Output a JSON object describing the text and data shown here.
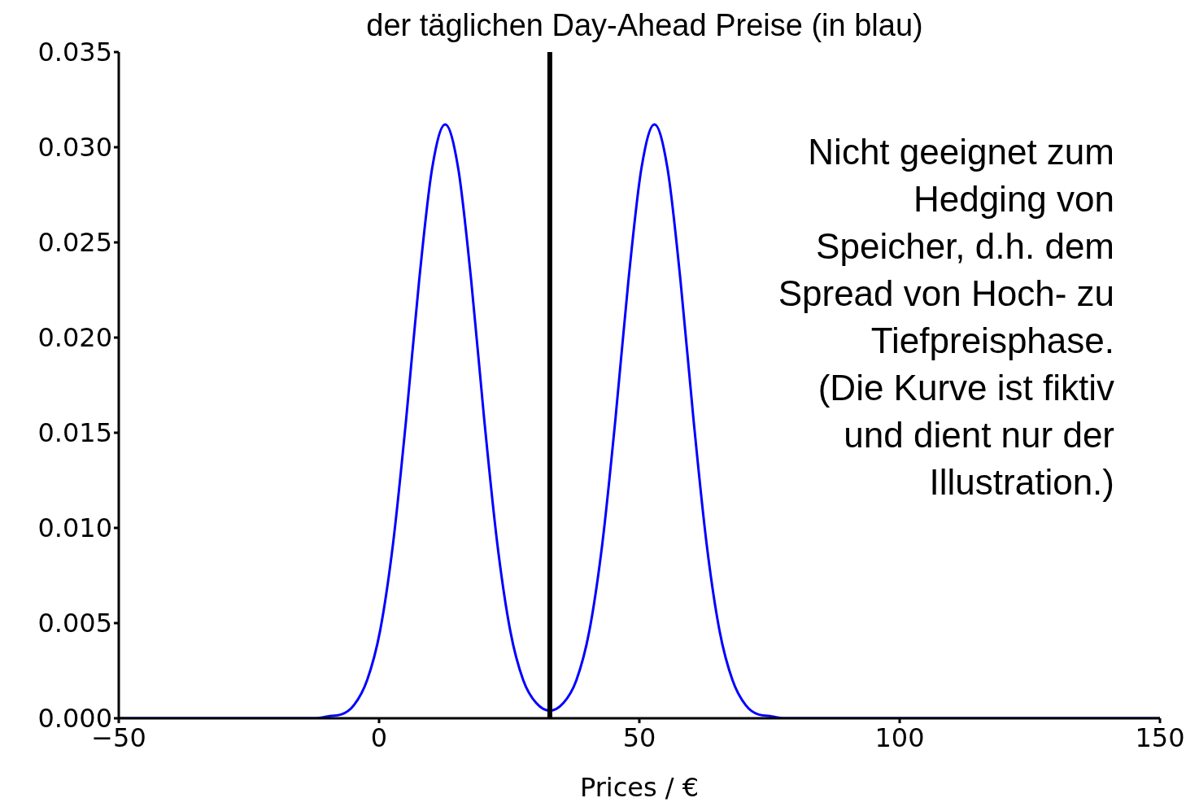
{
  "chart_data": {
    "type": "line",
    "title": "der täglichen Day-Ahead Preise (in blau)",
    "xlabel": "Prices / €",
    "series": [
      {
        "color": "#0000ff",
        "x": [
          -50,
          -20,
          -12.3,
          -9.8,
          -7.3,
          -4.8,
          -2.3,
          0.2,
          2.7,
          5.2,
          7.7,
          10.2,
          12.7,
          15.2,
          17.7,
          20.2,
          22.7,
          25.2,
          27.7,
          30.2,
          32.8,
          35.4,
          37.9,
          40.4,
          42.9,
          45.4,
          47.9,
          50.4,
          52.9,
          55.4,
          57.9,
          60.4,
          62.9,
          65.4,
          67.9,
          70.4,
          72.9,
          75.4,
          77.9,
          85,
          150
        ],
        "values": [
          0,
          0,
          0,
          0.0001,
          0.0002,
          0.0007,
          0.002,
          0.0046,
          0.0092,
          0.0157,
          0.023,
          0.0289,
          0.0312,
          0.0289,
          0.023,
          0.0157,
          0.0092,
          0.0046,
          0.002,
          0.0008,
          0.0004,
          0.0008,
          0.002,
          0.0046,
          0.0092,
          0.0157,
          0.023,
          0.0289,
          0.0312,
          0.0289,
          0.023,
          0.0157,
          0.0092,
          0.0046,
          0.002,
          0.0007,
          0.0002,
          0.0001,
          0,
          0,
          0
        ]
      }
    ],
    "xlim": [
      -50,
      150
    ],
    "xticks": [
      {
        "value": -50,
        "label": "−50"
      },
      0,
      50,
      100,
      150
    ],
    "ylim": [
      0,
      0.035
    ],
    "yticks": [
      {
        "value": 0,
        "label": "0.000"
      },
      {
        "value": 0.005,
        "label": "0.005"
      },
      {
        "value": 0.01,
        "label": "0.010"
      },
      {
        "value": 0.015,
        "label": "0.015"
      },
      {
        "value": 0.02,
        "label": "0.020"
      },
      {
        "value": 0.025,
        "label": "0.025"
      },
      {
        "value": 0.03,
        "label": "0.030"
      },
      {
        "value": 0.035,
        "label": "0.035"
      }
    ],
    "ref_lines": [
      {
        "axis": "x",
        "value": 32.8,
        "color": "#000000"
      }
    ],
    "annotations": [
      "Nicht geeignet zum\nHedging von\nSpeicher, d.h. dem\nSpread von Hoch- zu\nTiefpreisphase.\n(Die Kurve ist fiktiv\nund dient nur der\nIllustration.)"
    ],
    "grid": false,
    "legend": false,
    "marker": "none",
    "line_style": "solid"
  }
}
